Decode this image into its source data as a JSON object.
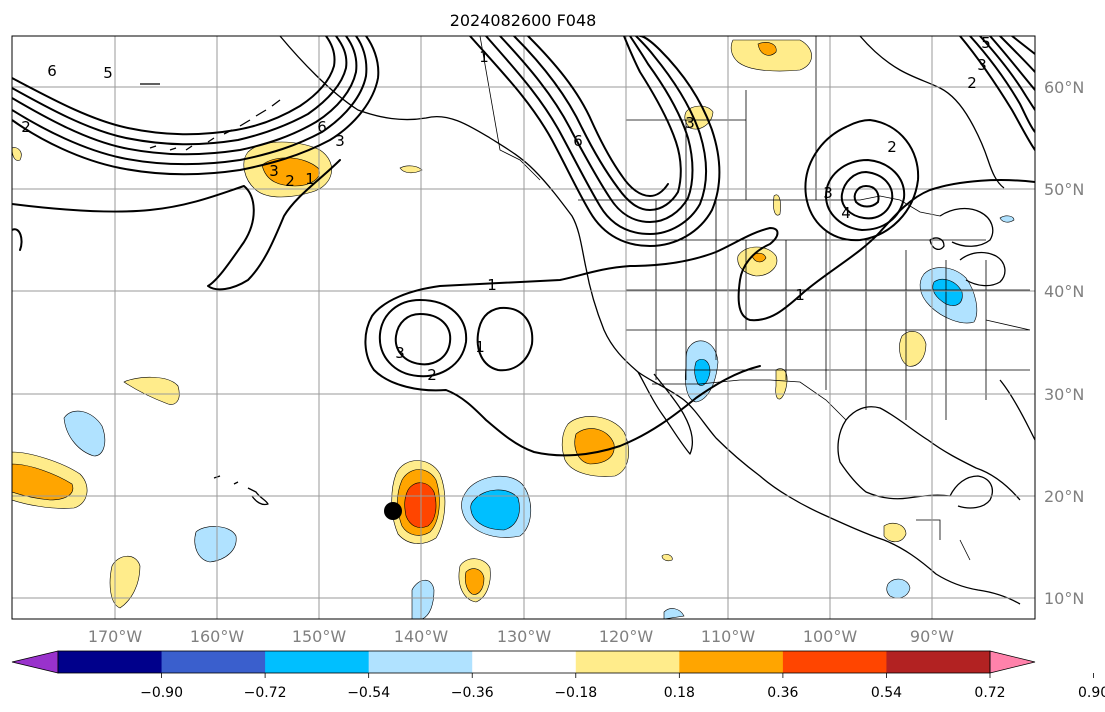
{
  "title": "2024082600 F048",
  "map": {
    "lon_labels": [
      "170°W",
      "160°W",
      "150°W",
      "140°W",
      "130°W",
      "120°W",
      "110°W",
      "100°W",
      "90°W"
    ],
    "lat_labels": [
      "60°N",
      "50°N",
      "40°N",
      "30°N",
      "20°N",
      "10°N"
    ],
    "contour_labels": [
      "1",
      "2",
      "3",
      "4",
      "5",
      "6"
    ],
    "point_marker": "filled-black-circle"
  },
  "colorbar": {
    "ticks": [
      "−0.90",
      "−0.72",
      "−0.54",
      "−0.36",
      "−0.18",
      "0.18",
      "0.36",
      "0.54",
      "0.72",
      "0.90"
    ],
    "colors": [
      "#9932cc",
      "#00008b",
      "#3a5fcd",
      "#00bfff",
      "#b0e2ff",
      "#ffffff",
      "#ffec8b",
      "#ffa500",
      "#ff4500",
      "#b22222",
      "#ff82ab"
    ]
  },
  "colors": {
    "shade_pos_1": "#ffec8b",
    "shade_pos_2": "#ffa500",
    "shade_pos_3": "#ff4500",
    "shade_neg_1": "#b0e2ff",
    "shade_neg_2": "#00bfff"
  }
}
